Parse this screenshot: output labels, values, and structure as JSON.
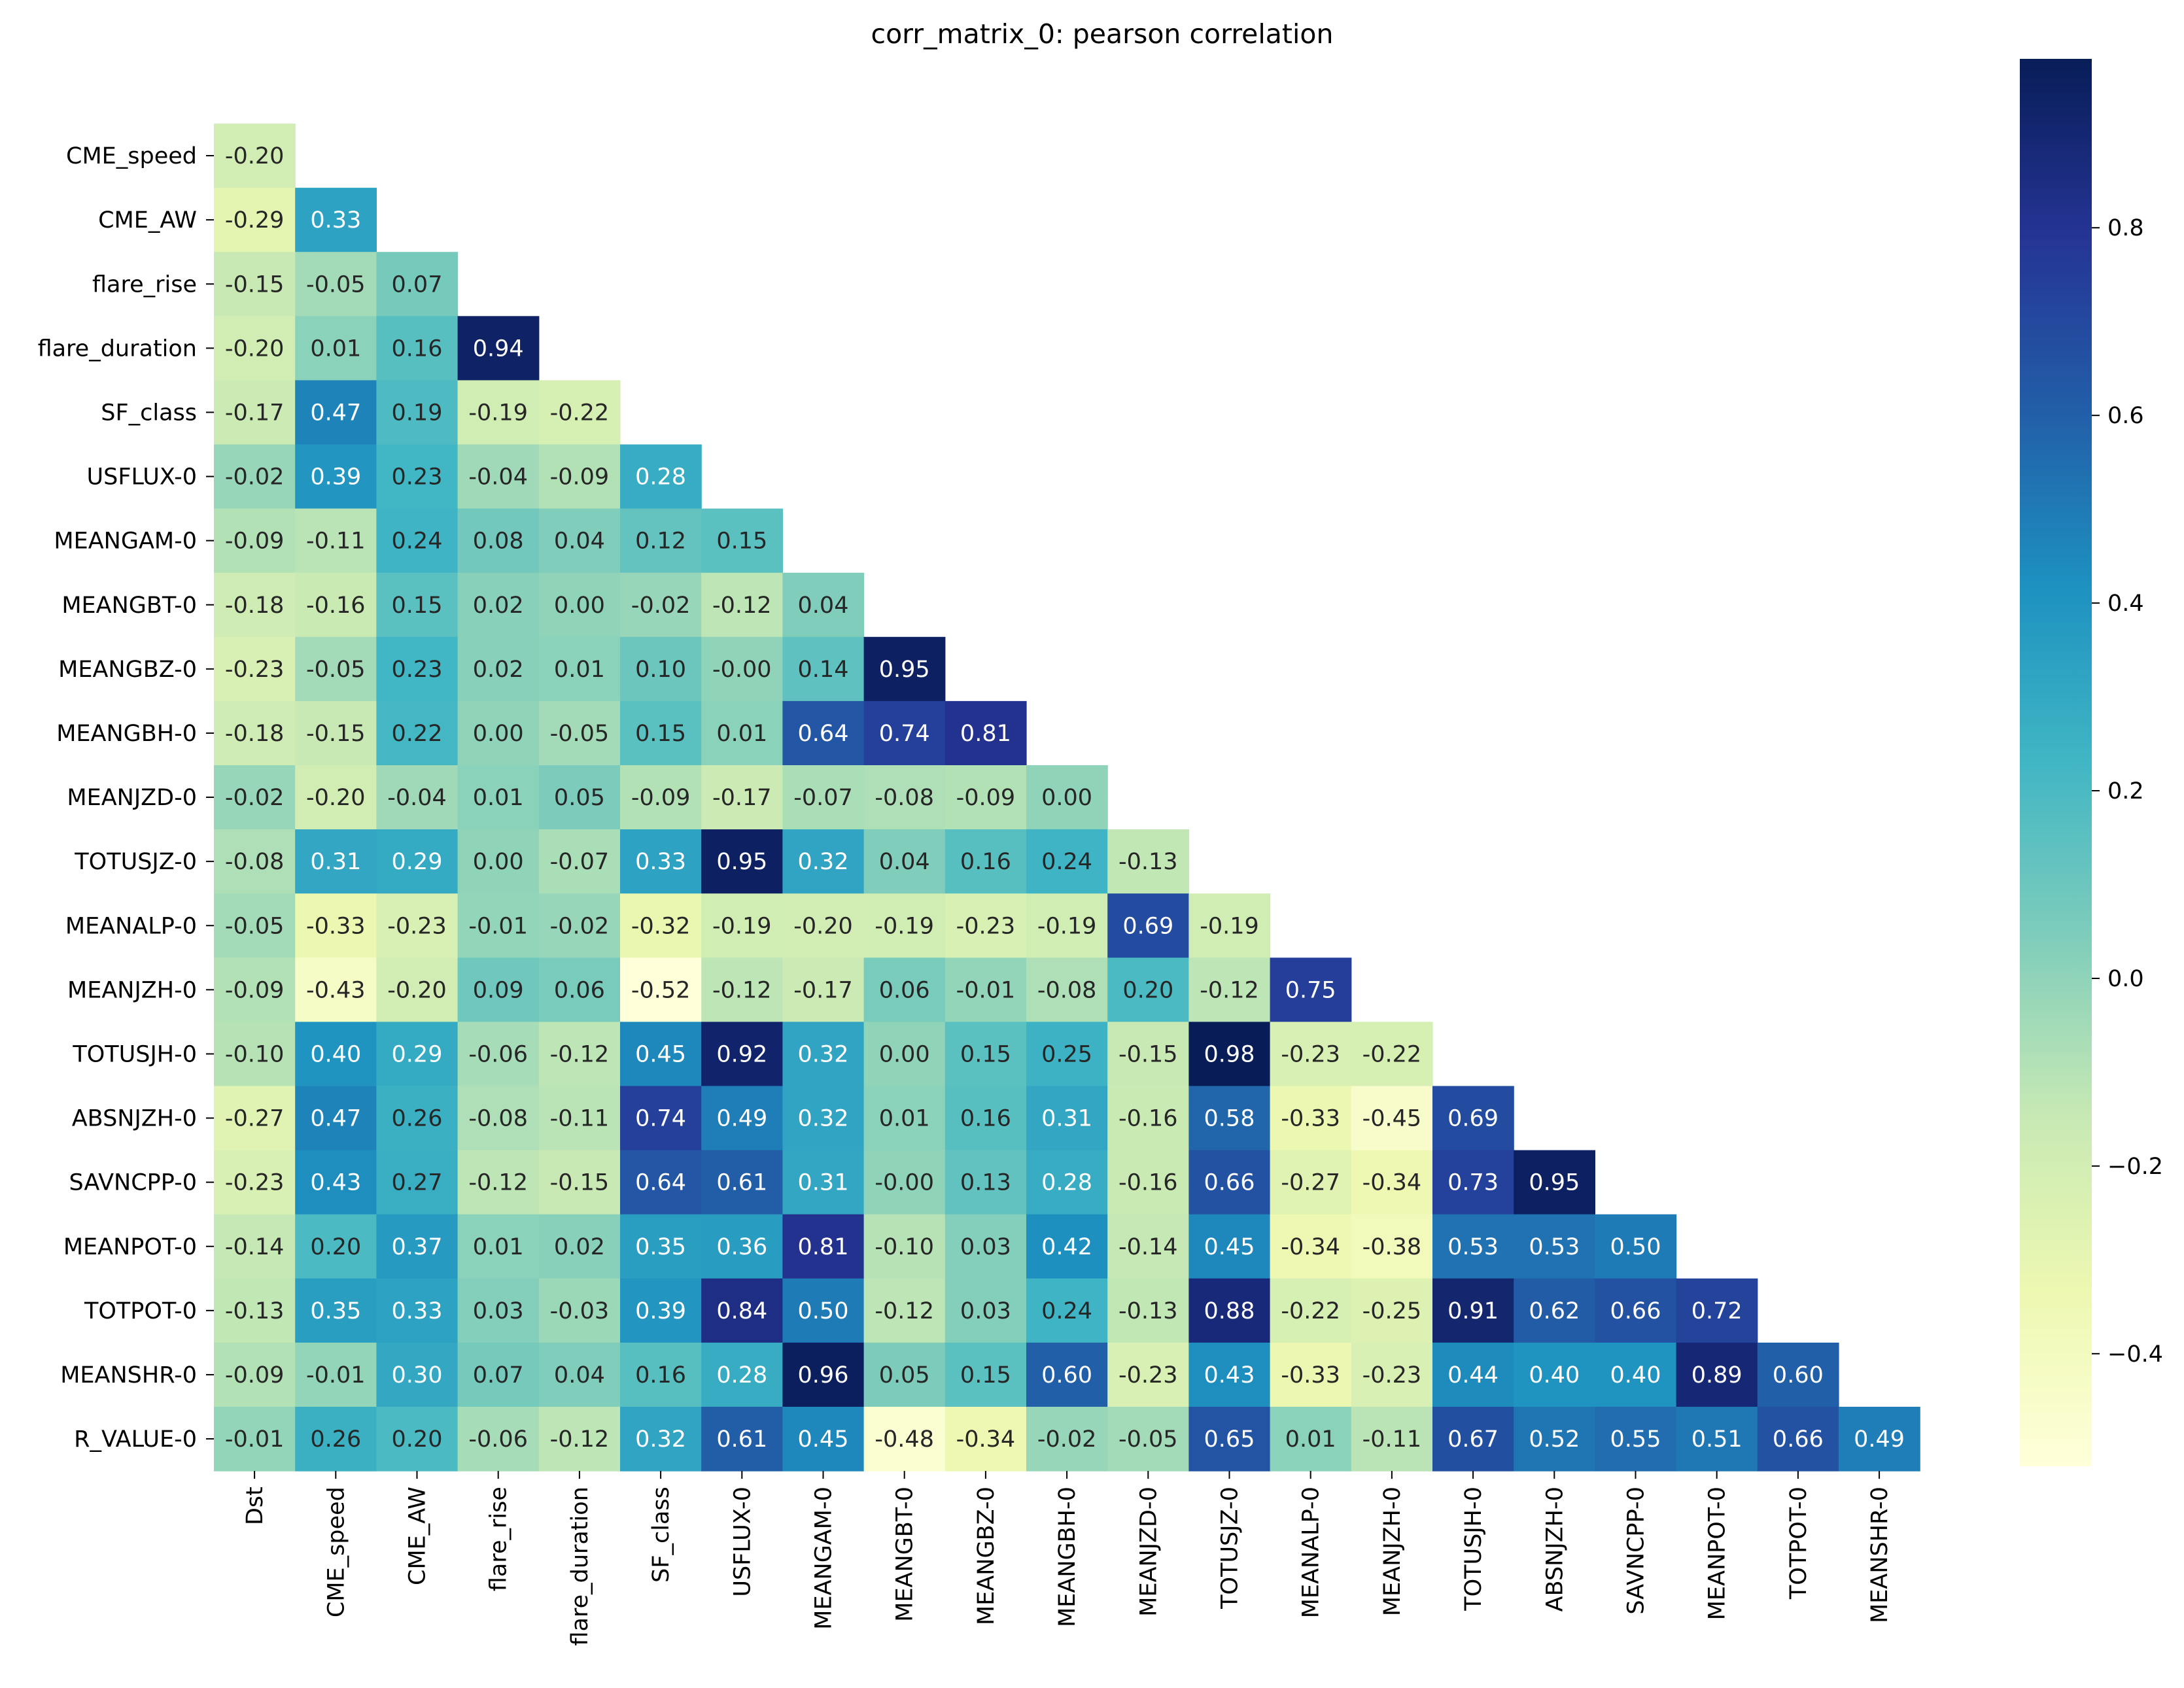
{
  "chart_data": {
    "type": "heatmap",
    "title": "corr_matrix_0: pearson correlation",
    "colormap": "YlGnBu",
    "vmin": -0.52,
    "vmax": 0.98,
    "row_labels": [
      "CME_speed",
      "CME_AW",
      "flare_rise",
      "flare_duration",
      "SF_class",
      "USFLUX-0",
      "MEANGAM-0",
      "MEANGBT-0",
      "MEANGBZ-0",
      "MEANGBH-0",
      "MEANJZD-0",
      "TOTUSJZ-0",
      "MEANALP-0",
      "MEANJZH-0",
      "TOTUSJH-0",
      "ABSNJZH-0",
      "SAVNCPP-0",
      "MEANPOT-0",
      "TOTPOT-0",
      "MEANSHR-0",
      "R_VALUE-0"
    ],
    "col_labels": [
      "Dst",
      "CME_speed",
      "CME_AW",
      "flare_rise",
      "flare_duration",
      "SF_class",
      "USFLUX-0",
      "MEANGAM-0",
      "MEANGBT-0",
      "MEANGBZ-0",
      "MEANGBH-0",
      "MEANJZD-0",
      "TOTUSJZ-0",
      "MEANALP-0",
      "MEANJZH-0",
      "TOTUSJH-0",
      "ABSNJZH-0",
      "SAVNCPP-0",
      "MEANPOT-0",
      "TOTPOT-0",
      "MEANSHR-0"
    ],
    "values": [
      [
        -0.2
      ],
      [
        -0.29,
        0.33
      ],
      [
        -0.15,
        -0.05,
        0.07
      ],
      [
        -0.2,
        0.01,
        0.16,
        0.94
      ],
      [
        -0.17,
        0.47,
        0.19,
        -0.19,
        -0.22
      ],
      [
        -0.02,
        0.39,
        0.23,
        -0.04,
        -0.09,
        0.28
      ],
      [
        -0.09,
        -0.11,
        0.24,
        0.08,
        0.04,
        0.12,
        0.15
      ],
      [
        -0.18,
        -0.16,
        0.15,
        0.02,
        0.0,
        -0.02,
        -0.12,
        0.04
      ],
      [
        -0.23,
        -0.05,
        0.23,
        0.02,
        0.01,
        0.1,
        -0.0,
        0.14,
        0.95
      ],
      [
        -0.18,
        -0.15,
        0.22,
        0.0,
        -0.05,
        0.15,
        0.01,
        0.64,
        0.74,
        0.81
      ],
      [
        -0.02,
        -0.2,
        -0.04,
        0.01,
        0.05,
        -0.09,
        -0.17,
        -0.07,
        -0.08,
        -0.09,
        0.0
      ],
      [
        -0.08,
        0.31,
        0.29,
        0.0,
        -0.07,
        0.33,
        0.95,
        0.32,
        0.04,
        0.16,
        0.24,
        -0.13
      ],
      [
        -0.05,
        -0.33,
        -0.23,
        -0.01,
        -0.02,
        -0.32,
        -0.19,
        -0.2,
        -0.19,
        -0.23,
        -0.19,
        0.69,
        -0.19
      ],
      [
        -0.09,
        -0.43,
        -0.2,
        0.09,
        0.06,
        -0.52,
        -0.12,
        -0.17,
        0.06,
        -0.01,
        -0.08,
        0.2,
        -0.12,
        0.75
      ],
      [
        -0.1,
        0.4,
        0.29,
        -0.06,
        -0.12,
        0.45,
        0.92,
        0.32,
        0.0,
        0.15,
        0.25,
        -0.15,
        0.98,
        -0.23,
        -0.22
      ],
      [
        -0.27,
        0.47,
        0.26,
        -0.08,
        -0.11,
        0.74,
        0.49,
        0.32,
        0.01,
        0.16,
        0.31,
        -0.16,
        0.58,
        -0.33,
        -0.45,
        0.69
      ],
      [
        -0.23,
        0.43,
        0.27,
        -0.12,
        -0.15,
        0.64,
        0.61,
        0.31,
        -0.0,
        0.13,
        0.28,
        -0.16,
        0.66,
        -0.27,
        -0.34,
        0.73,
        0.95
      ],
      [
        -0.14,
        0.2,
        0.37,
        0.01,
        0.02,
        0.35,
        0.36,
        0.81,
        -0.1,
        0.03,
        0.42,
        -0.14,
        0.45,
        -0.34,
        -0.38,
        0.53,
        0.53,
        0.5
      ],
      [
        -0.13,
        0.35,
        0.33,
        0.03,
        -0.03,
        0.39,
        0.84,
        0.5,
        -0.12,
        0.03,
        0.24,
        -0.13,
        0.88,
        -0.22,
        -0.25,
        0.91,
        0.62,
        0.66,
        0.72
      ],
      [
        -0.09,
        -0.01,
        0.3,
        0.07,
        0.04,
        0.16,
        0.28,
        0.96,
        0.05,
        0.15,
        0.6,
        -0.23,
        0.43,
        -0.33,
        -0.23,
        0.44,
        0.4,
        0.4,
        0.89,
        0.6
      ],
      [
        -0.01,
        0.26,
        0.2,
        -0.06,
        -0.12,
        0.32,
        0.61,
        0.45,
        -0.48,
        -0.34,
        -0.02,
        -0.05,
        0.65,
        0.01,
        -0.11,
        0.67,
        0.52,
        0.55,
        0.51,
        0.66,
        0.49
      ]
    ],
    "colorbar": {
      "ticks": [
        -0.4,
        -0.2,
        0.0,
        0.2,
        0.4,
        0.6,
        0.8
      ],
      "tick_labels": [
        "−0.4",
        "−0.2",
        "0.0",
        "0.2",
        "0.4",
        "0.6",
        "0.8"
      ]
    }
  }
}
